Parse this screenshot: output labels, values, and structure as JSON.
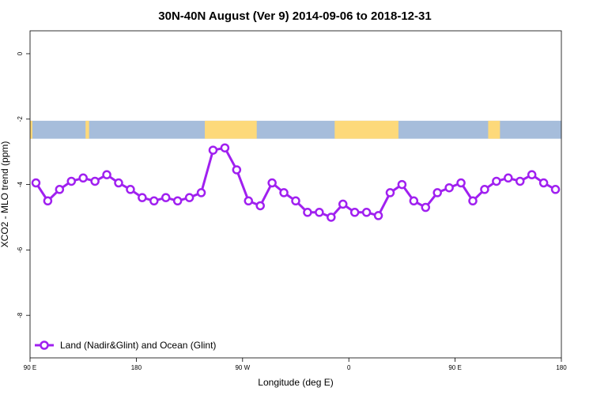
{
  "chart_data": {
    "type": "line",
    "title": "30N-40N August (Ver 9)   2014-09-06 to 2018-12-31",
    "xlabel": "Longitude (deg E)",
    "ylabel": "XCO2 - MLO trend (ppm)",
    "xlim": [
      90,
      540
    ],
    "ylim": [
      -9.3,
      0.7
    ],
    "xticks": [
      {
        "value": 90,
        "label": "90 E"
      },
      {
        "value": 180,
        "label": "180"
      },
      {
        "value": 270,
        "label": "90 W"
      },
      {
        "value": 360,
        "label": "0"
      },
      {
        "value": 450,
        "label": "90 E"
      },
      {
        "value": 540,
        "label": "180"
      }
    ],
    "yticks": [
      {
        "value": 0,
        "label": "0"
      },
      {
        "value": -2,
        "label": "-2"
      },
      {
        "value": -4,
        "label": "-4"
      },
      {
        "value": -6,
        "label": "-6"
      },
      {
        "value": -8,
        "label": "-8"
      }
    ],
    "grid": false,
    "legend": {
      "position": "bottom-left",
      "entries": [
        "Land (Nadir&Glint) and Ocean (Glint)"
      ]
    },
    "series": [
      {
        "name": "Land (Nadir&Glint) and Ocean (Glint)",
        "color": "#a020f0",
        "x": [
          95,
          105,
          115,
          125,
          135,
          145,
          155,
          165,
          175,
          185,
          195,
          205,
          215,
          225,
          235,
          245,
          255,
          265,
          275,
          285,
          295,
          305,
          315,
          325,
          335,
          345,
          355,
          365,
          375,
          385,
          395,
          405,
          415,
          425,
          435,
          445,
          455,
          465,
          475,
          485,
          495,
          505,
          515,
          525,
          535
        ],
        "values": [
          -3.95,
          -4.5,
          -4.15,
          -3.9,
          -3.8,
          -3.9,
          -3.7,
          -3.95,
          -4.15,
          -4.4,
          -4.5,
          -4.4,
          -4.5,
          -4.4,
          -4.25,
          -2.95,
          -2.88,
          -3.55,
          -4.5,
          -4.65,
          -3.95,
          -4.25,
          -4.5,
          -4.85,
          -4.85,
          -5.0,
          -4.6,
          -4.85,
          -4.85,
          -4.95,
          -4.25,
          -4.0,
          -4.5,
          -4.7,
          -4.25,
          -4.1,
          -3.95,
          -4.5,
          -4.15,
          -3.9,
          -3.8,
          -3.9,
          -3.7,
          -3.95,
          -4.15
        ]
      }
    ],
    "map_strip": {
      "ymin": -2.6,
      "ymax": -2.05,
      "ocean_color": "#a6bddb",
      "land_color": "#fdd97a",
      "land_ranges": [
        [
          90,
          92
        ],
        [
          137,
          140
        ],
        [
          238,
          282
        ],
        [
          348,
          402
        ],
        [
          478,
          488
        ]
      ]
    }
  }
}
